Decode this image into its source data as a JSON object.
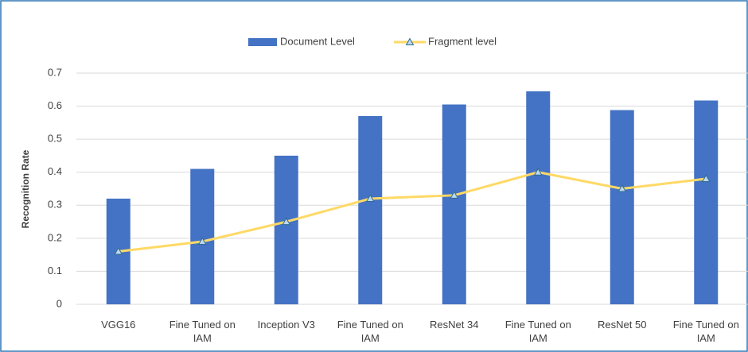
{
  "chart_data": {
    "type": "bar+line",
    "categories": [
      "VGG16",
      "Fine Tuned on IAM",
      "Inception V3",
      "Fine Tuned on IAM",
      "ResNet 34",
      "Fine Tuned on IAM",
      "ResNet 50",
      "Fine Tuned on IAM"
    ],
    "series": [
      {
        "name": "Document Level",
        "type": "bar",
        "color": "#4472c4",
        "values": [
          0.32,
          0.41,
          0.45,
          0.57,
          0.605,
          0.645,
          0.588,
          0.617
        ]
      },
      {
        "name": "Fragment level",
        "type": "line",
        "color": "#ffd966",
        "values": [
          0.16,
          0.19,
          0.25,
          0.32,
          0.33,
          0.4,
          0.35,
          0.38
        ]
      }
    ],
    "ylabel": "Recognition Rate",
    "ylim": [
      0,
      0.7
    ],
    "yticks": [
      0,
      0.1,
      0.2,
      0.3,
      0.4,
      0.5,
      0.6,
      0.7
    ],
    "grid": true,
    "legend": "top"
  }
}
